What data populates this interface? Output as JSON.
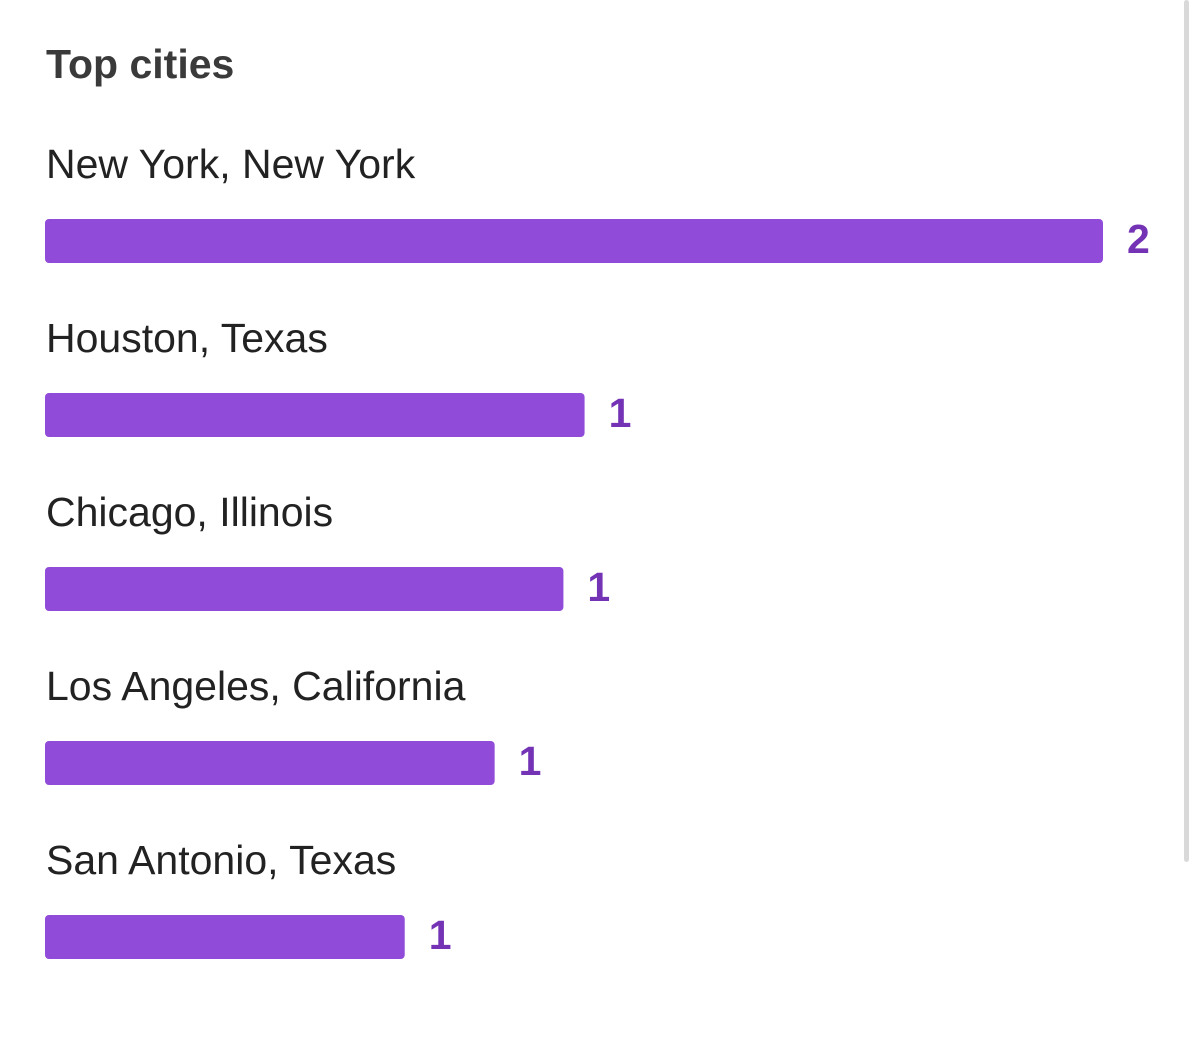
{
  "chart_data": {
    "type": "bar",
    "orientation": "horizontal",
    "title": "Top cities",
    "categories": [
      "New York, New York",
      "Houston, Texas",
      "Chicago, Illinois",
      "Los Angeles, California",
      "San Antonio, Texas"
    ],
    "values": [
      2,
      1.02,
      0.98,
      0.85,
      0.68
    ],
    "value_labels": [
      "2",
      "1",
      "1",
      "1",
      "1"
    ],
    "color": "#904bd9",
    "label_color": "#7433b5",
    "xlim": [
      0,
      2
    ]
  }
}
